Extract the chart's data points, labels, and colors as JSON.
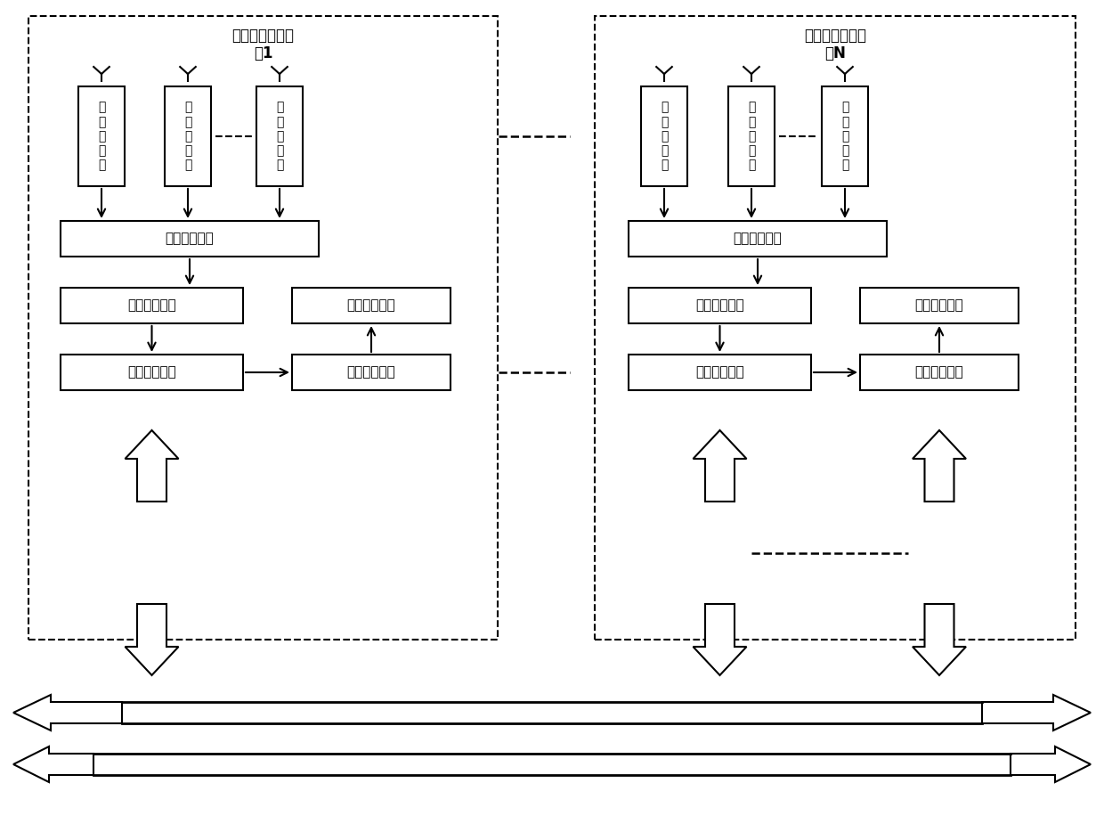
{
  "bg_color": "#ffffff",
  "subsystem1_label": "微波辐射计子系\n统1",
  "subsystemN_label": "微波辐射计子系\n统N",
  "receiver_label": "接\n收\n机\n通\n道",
  "signal_label": "信号采集装置",
  "subband_label": "子带划分装置",
  "brightness_label": "亮温反演装置",
  "intersat_label": "星间通信装置",
  "correlation_label": "相关处理装置",
  "fig_width": 12.4,
  "fig_height": 9.25
}
